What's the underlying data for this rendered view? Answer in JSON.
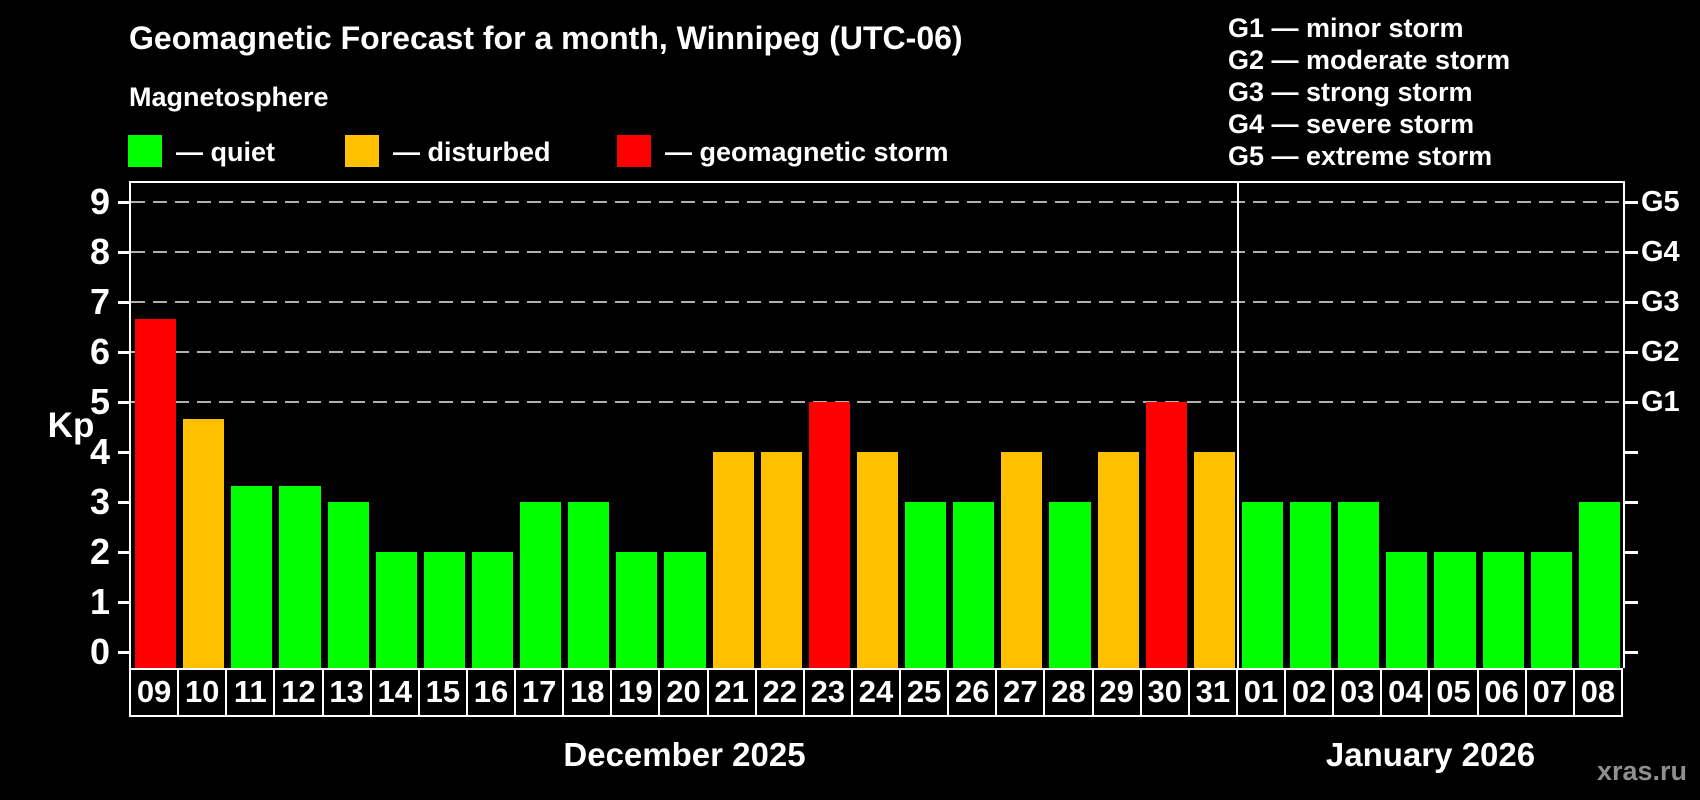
{
  "title": "Geomagnetic Forecast for a month, Winnipeg (UTC-06)",
  "subtitle": "Magnetosphere",
  "watermark": "xras.ru",
  "legend": {
    "items": [
      {
        "label": "— quiet",
        "status": "quiet",
        "color": "#00ff00"
      },
      {
        "label": "— disturbed",
        "status": "disturbed",
        "color": "#ffc000"
      },
      {
        "label": "— geomagnetic storm",
        "status": "storm",
        "color": "#ff0000"
      }
    ]
  },
  "storm_scale_legend": [
    "G1 — minor storm",
    "G2 — moderate storm",
    "G3 — strong storm",
    "G4 — severe storm",
    "G5 — extreme storm"
  ],
  "chart_data": {
    "type": "bar",
    "title": "Geomagnetic Forecast for a month, Winnipeg (UTC-06)",
    "ylabel": "Kp",
    "ylim": [
      0,
      9.4
    ],
    "y_ticks": [
      0,
      1,
      2,
      3,
      4,
      5,
      6,
      7,
      8,
      9
    ],
    "grid": "dashed horizontal lines at Kp 5-9 only",
    "legend_position": "top-left",
    "colors": {
      "quiet": "#00ff00",
      "disturbed": "#ffc000",
      "storm": "#ff0000"
    },
    "g_levels": [
      {
        "label": "G1",
        "kp": 5
      },
      {
        "label": "G2",
        "kp": 6
      },
      {
        "label": "G3",
        "kp": 7
      },
      {
        "label": "G4",
        "kp": 8
      },
      {
        "label": "G5",
        "kp": 9
      }
    ],
    "months": [
      {
        "label": "December 2025",
        "days": [
          {
            "day": "09",
            "kp": 6.67,
            "status": "storm"
          },
          {
            "day": "10",
            "kp": 4.67,
            "status": "disturbed"
          },
          {
            "day": "11",
            "kp": 3.33,
            "status": "quiet"
          },
          {
            "day": "12",
            "kp": 3.33,
            "status": "quiet"
          },
          {
            "day": "13",
            "kp": 3,
            "status": "quiet"
          },
          {
            "day": "14",
            "kp": 2,
            "status": "quiet"
          },
          {
            "day": "15",
            "kp": 2,
            "status": "quiet"
          },
          {
            "day": "16",
            "kp": 2,
            "status": "quiet"
          },
          {
            "day": "17",
            "kp": 3,
            "status": "quiet"
          },
          {
            "day": "18",
            "kp": 3,
            "status": "quiet"
          },
          {
            "day": "19",
            "kp": 2,
            "status": "quiet"
          },
          {
            "day": "20",
            "kp": 2,
            "status": "quiet"
          },
          {
            "day": "21",
            "kp": 4,
            "status": "disturbed"
          },
          {
            "day": "22",
            "kp": 4,
            "status": "disturbed"
          },
          {
            "day": "23",
            "kp": 5,
            "status": "storm"
          },
          {
            "day": "24",
            "kp": 4,
            "status": "disturbed"
          },
          {
            "day": "25",
            "kp": 3,
            "status": "quiet"
          },
          {
            "day": "26",
            "kp": 3,
            "status": "quiet"
          },
          {
            "day": "27",
            "kp": 4,
            "status": "disturbed"
          },
          {
            "day": "28",
            "kp": 3,
            "status": "quiet"
          },
          {
            "day": "29",
            "kp": 4,
            "status": "disturbed"
          },
          {
            "day": "30",
            "kp": 5,
            "status": "storm"
          },
          {
            "day": "31",
            "kp": 4,
            "status": "disturbed"
          }
        ]
      },
      {
        "label": "January 2026",
        "days": [
          {
            "day": "01",
            "kp": 3,
            "status": "quiet"
          },
          {
            "day": "02",
            "kp": 3,
            "status": "quiet"
          },
          {
            "day": "03",
            "kp": 3,
            "status": "quiet"
          },
          {
            "day": "04",
            "kp": 2,
            "status": "quiet"
          },
          {
            "day": "05",
            "kp": 2,
            "status": "quiet"
          },
          {
            "day": "06",
            "kp": 2,
            "status": "quiet"
          },
          {
            "day": "07",
            "kp": 2,
            "status": "quiet"
          },
          {
            "day": "08",
            "kp": 3,
            "status": "quiet"
          }
        ]
      }
    ]
  }
}
